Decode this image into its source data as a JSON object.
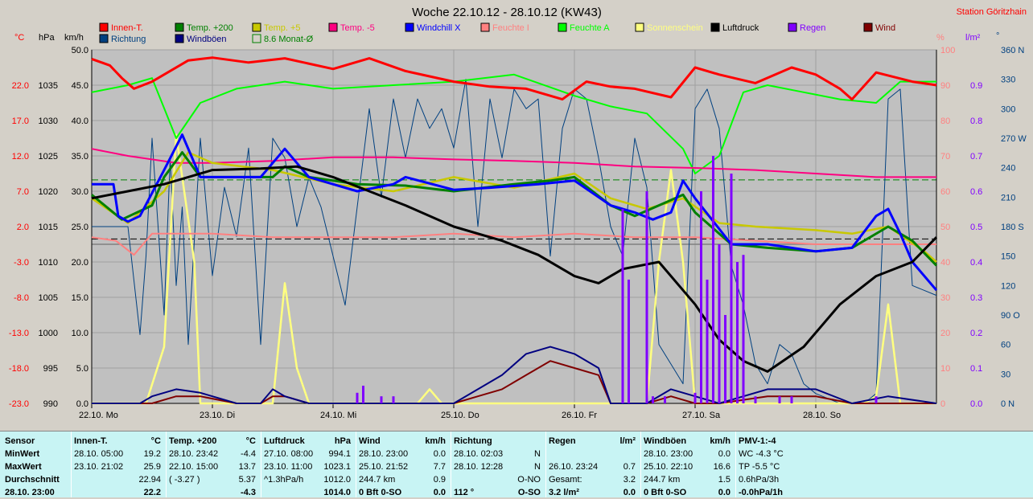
{
  "title": "Woche 22.10.12 - 28.10.12 (KW43)",
  "station": "Station Göritzhain",
  "axis_units": {
    "temp": "°C",
    "press": "hPa",
    "wind": "km/h",
    "humid": "%",
    "rain": "l/m²",
    "dir": "°"
  },
  "legend": [
    {
      "label": "Innen-T.",
      "color": "#ff0000"
    },
    {
      "label": "Temp. +200",
      "color": "#008000"
    },
    {
      "label": "Temp. +5",
      "color": "#c8c800"
    },
    {
      "label": "Temp. -5",
      "color": "#ff0080"
    },
    {
      "label": "Windchill X",
      "color": "#0000ff"
    },
    {
      "label": "Feuchte I",
      "color": "#ff8080"
    },
    {
      "label": "Feuchte A",
      "color": "#00ff00"
    },
    {
      "label": "Sonnenschein",
      "color": "#ffff80"
    },
    {
      "label": "Luftdruck",
      "color": "#000000"
    },
    {
      "label": "Regen",
      "color": "#8000ff"
    },
    {
      "label": "Wind",
      "color": "#800000"
    },
    {
      "label": "Richtung",
      "color": "#004080"
    },
    {
      "label": "Windböen",
      "color": "#000080"
    },
    {
      "label": "8.6 Monat-Ø",
      "color": "#008000"
    }
  ],
  "chart_data": {
    "type": "line",
    "title": "Woche 22.10.12 - 28.10.12 (KW43)",
    "x_ticks": [
      "22.10. Mo",
      "23.10. Di",
      "24.10. Mi",
      "25.10. Do",
      "26.10. Fr",
      "27.10. Sa",
      "28.10. So"
    ],
    "x_range_days": [
      0,
      7
    ],
    "axes": {
      "temp": {
        "ticks": [
          "-23.0",
          "-18.0",
          "-13.0",
          "-8.0",
          "-3.0",
          "2.0",
          "7.0",
          "12.0",
          "17.0",
          "22.0"
        ],
        "range": [
          -23,
          27
        ]
      },
      "press": {
        "ticks": [
          "990",
          "995",
          "1000",
          "1005",
          "1010",
          "1015",
          "1020",
          "1025",
          "1030",
          "1035"
        ],
        "range": [
          990,
          1040
        ]
      },
      "wind": {
        "ticks": [
          "0.0",
          "5.0",
          "10.0",
          "15.0",
          "20.0",
          "25.0",
          "30.0",
          "35.0",
          "40.0",
          "45.0",
          "50.0"
        ],
        "range": [
          0,
          50
        ]
      },
      "humid": {
        "ticks": [
          "0",
          "10",
          "20",
          "30",
          "40",
          "50",
          "60",
          "70",
          "80",
          "90",
          "100"
        ],
        "range": [
          0,
          100
        ]
      },
      "rain": {
        "ticks": [
          "0.0",
          "0.1",
          "0.2",
          "0.3",
          "0.4",
          "0.5",
          "0.6",
          "0.7",
          "0.8",
          "0.9"
        ],
        "range": [
          0,
          1.0
        ]
      },
      "dir": {
        "ticks": [
          "0 N",
          "30",
          "60",
          "90 O",
          "120",
          "150",
          "180 S",
          "210",
          "240",
          "270 W",
          "300",
          "330",
          "360 N"
        ],
        "range": [
          0,
          360
        ]
      }
    },
    "reference_lines": [
      {
        "name": "8.6 Monat-Ø",
        "axis": "temp",
        "value": 8.6,
        "color": "#008000",
        "dash": true
      },
      {
        "axis": "press",
        "value": 1013.25,
        "color": "#000000",
        "dash": true
      }
    ],
    "series": [
      {
        "name": "Innen-T.",
        "axis": "temp",
        "color": "#ff0000",
        "x": [
          0,
          0.15,
          0.25,
          0.35,
          0.5,
          0.8,
          1.0,
          1.3,
          1.6,
          2.0,
          2.3,
          2.6,
          3.0,
          3.3,
          3.6,
          3.9,
          4.1,
          4.3,
          4.5,
          4.8,
          5.0,
          5.2,
          5.5,
          5.8,
          6.0,
          6.2,
          6.3,
          6.5,
          6.8,
          7.0
        ],
        "y": [
          25.7,
          24.8,
          23.0,
          21.5,
          22.5,
          25.5,
          25.9,
          25.2,
          25.8,
          24.3,
          25.8,
          24.0,
          22.5,
          21.8,
          21.5,
          20.0,
          22.5,
          21.8,
          21.5,
          20.3,
          24.5,
          23.5,
          22.3,
          24.5,
          23.5,
          21.5,
          20.0,
          23.8,
          22.5,
          22.0
        ]
      },
      {
        "name": "Feuchte A",
        "axis": "humid",
        "color": "#00ff00",
        "x": [
          0,
          0.3,
          0.5,
          0.7,
          0.9,
          1.2,
          1.6,
          2.0,
          2.5,
          3.0,
          3.5,
          4.0,
          4.3,
          4.6,
          4.9,
          5.0,
          5.2,
          5.4,
          5.6,
          5.9,
          6.2,
          6.5,
          6.7,
          7.0
        ],
        "y": [
          88,
          90,
          92,
          75,
          85,
          89,
          91,
          89,
          90,
          91,
          93,
          87,
          84,
          82,
          72,
          65,
          70,
          88,
          90,
          88,
          86,
          85,
          91,
          91
        ]
      },
      {
        "name": "Temp. -5",
        "axis": "temp",
        "color": "#ff0080",
        "x": [
          0,
          0.3,
          0.7,
          1.0,
          1.5,
          2.0,
          2.5,
          3.0,
          3.5,
          4.0,
          4.5,
          5.0,
          5.5,
          6.0,
          6.5,
          7.0
        ],
        "y": [
          13.0,
          12.0,
          11.0,
          11.0,
          11.3,
          11.8,
          11.8,
          11.5,
          11.3,
          11.0,
          10.5,
          10.3,
          10.0,
          9.5,
          9.0,
          9.0
        ]
      },
      {
        "name": "Feuchte I",
        "axis": "humid",
        "color": "#ff8080",
        "x": [
          0,
          0.2,
          0.35,
          0.5,
          1.0,
          1.5,
          2.0,
          2.5,
          3.0,
          3.5,
          4.0,
          4.5,
          5.0,
          5.5,
          6.0,
          6.5,
          7.0
        ],
        "y": [
          47,
          46,
          42,
          48,
          48,
          47,
          47,
          47,
          48,
          47,
          48,
          47,
          47,
          46,
          45,
          45,
          45
        ]
      },
      {
        "name": "Temp. +5",
        "axis": "temp",
        "color": "#c8c800",
        "x": [
          0,
          0.3,
          0.6,
          0.8,
          1.0,
          1.5,
          2.0,
          2.5,
          3.0,
          3.5,
          4.0,
          4.3,
          4.6,
          4.9,
          5.2,
          5.5,
          6.0,
          6.3,
          6.6,
          6.9,
          7.0
        ],
        "y": [
          6.0,
          2.5,
          7.0,
          12.5,
          11.0,
          10.0,
          8.0,
          7.0,
          9.0,
          7.5,
          9.5,
          6.0,
          4.5,
          6.0,
          2.5,
          2.0,
          1.5,
          1.0,
          2.0,
          -1.5,
          -3.0
        ]
      },
      {
        "name": "Temp. +200",
        "axis": "temp",
        "color": "#008000",
        "x": [
          0,
          0.25,
          0.5,
          0.6,
          0.75,
          0.9,
          1.2,
          1.5,
          1.6,
          1.8,
          2.2,
          2.6,
          3.0,
          3.5,
          3.8,
          4.0,
          4.3,
          4.5,
          4.7,
          4.9,
          5.0,
          5.3,
          5.6,
          6.0,
          6.3,
          6.6,
          6.8,
          7.0
        ],
        "y": [
          6.5,
          3.0,
          5.0,
          9.0,
          12.5,
          9.0,
          9.0,
          9.0,
          10.5,
          9.0,
          8.0,
          7.8,
          7.0,
          8.0,
          8.5,
          9.0,
          5.0,
          3.5,
          5.0,
          6.5,
          4.0,
          -0.5,
          -1.0,
          -1.5,
          -1.0,
          2.0,
          0.0,
          -3.5
        ]
      },
      {
        "name": "Windchill X",
        "axis": "temp",
        "color": "#0000ff",
        "x": [
          0,
          0.18,
          0.22,
          0.3,
          0.4,
          0.6,
          0.75,
          0.9,
          1.2,
          1.4,
          1.5,
          1.6,
          1.7,
          1.8,
          2.2,
          2.5,
          2.6,
          3.0,
          3.3,
          3.7,
          4.0,
          4.3,
          4.5,
          4.65,
          4.8,
          4.9,
          5.0,
          5.3,
          5.6,
          6.0,
          6.3,
          6.5,
          6.6,
          6.7,
          6.8,
          7.0
        ],
        "y": [
          8.0,
          8.0,
          3.5,
          2.7,
          3.5,
          10.0,
          15.0,
          9.0,
          9.0,
          9.0,
          11.0,
          13.0,
          11.0,
          9.0,
          7.0,
          8.0,
          9.0,
          7.2,
          7.5,
          8.0,
          8.5,
          5.0,
          4.0,
          3.0,
          4.0,
          8.5,
          6.0,
          -0.5,
          -0.5,
          -1.5,
          -1.0,
          3.5,
          4.5,
          1.0,
          -3.0,
          -7.0
        ]
      },
      {
        "name": "Luftdruck",
        "axis": "press",
        "color": "#000000",
        "x": [
          0,
          0.3,
          0.6,
          0.8,
          1.0,
          1.4,
          1.7,
          2.0,
          2.3,
          2.6,
          3.0,
          3.4,
          3.7,
          4.0,
          4.2,
          4.4,
          4.7,
          5.0,
          5.2,
          5.4,
          5.6,
          5.9,
          6.2,
          6.5,
          6.8,
          7.0
        ],
        "y": [
          1019,
          1020,
          1021,
          1022,
          1023,
          1023.2,
          1023.5,
          1022,
          1020,
          1018,
          1015,
          1013,
          1011,
          1008,
          1007,
          1009,
          1010,
          1004,
          999,
          996,
          994.5,
          998,
          1004,
          1008,
          1010,
          1013.5
        ]
      },
      {
        "name": "Sonnenschein",
        "axis": "wind",
        "color": "#ffff80",
        "x": [
          0,
          0.35,
          0.45,
          0.6,
          0.7,
          0.85,
          0.9,
          1.4,
          1.5,
          1.6,
          1.7,
          1.8,
          2.6,
          2.7,
          2.8,
          2.9,
          4.4,
          4.5,
          4.6,
          4.7,
          4.8,
          4.9,
          5.0,
          5.1,
          6.3,
          6.4,
          6.5,
          6.6,
          6.7,
          7.0
        ],
        "y": [
          0,
          0,
          0,
          8,
          38,
          20,
          0,
          0,
          0,
          17,
          5,
          0,
          0,
          0,
          2,
          0,
          0,
          0,
          0,
          20,
          33,
          20,
          0,
          0,
          0,
          0,
          1,
          14,
          0,
          0
        ]
      },
      {
        "name": "Wind",
        "axis": "wind",
        "color": "#800000",
        "x": [
          0,
          0.5,
          0.7,
          0.9,
          1.2,
          1.4,
          1.5,
          1.6,
          1.8,
          2.0,
          3.0,
          3.2,
          3.4,
          3.6,
          3.8,
          4.0,
          4.2,
          4.3,
          4.6,
          4.8,
          5.0,
          5.2,
          5.6,
          5.8,
          6.0,
          6.3,
          6.6,
          7.0
        ],
        "y": [
          0,
          0,
          1,
          1,
          0,
          0,
          1,
          1,
          0,
          0,
          0,
          1,
          2,
          4,
          6,
          5,
          4,
          0,
          0,
          1,
          0,
          0,
          1,
          1,
          1,
          0,
          0,
          0
        ]
      },
      {
        "name": "Windböen",
        "axis": "wind",
        "color": "#000080",
        "x": [
          0,
          0.4,
          0.5,
          0.7,
          0.9,
          1.2,
          1.4,
          1.5,
          1.6,
          1.8,
          2.0,
          3.0,
          3.2,
          3.4,
          3.6,
          3.8,
          4.0,
          4.2,
          4.3,
          4.6,
          4.8,
          5.0,
          5.2,
          5.6,
          5.8,
          6.0,
          6.3,
          6.6,
          7.0
        ],
        "y": [
          0,
          0,
          1,
          2,
          1.5,
          0,
          0,
          2,
          1,
          0,
          0,
          0,
          2,
          4,
          7,
          8,
          7,
          5,
          0,
          0,
          2,
          1,
          0,
          2,
          2,
          2,
          0,
          1,
          0
        ]
      },
      {
        "name": "Richtung",
        "axis": "dir",
        "color": "#004080",
        "x": [
          0,
          0.3,
          0.4,
          0.45,
          0.5,
          0.55,
          0.6,
          0.65,
          0.7,
          0.75,
          0.8,
          0.9,
          1.0,
          1.1,
          1.2,
          1.3,
          1.4,
          1.5,
          1.6,
          1.7,
          1.8,
          1.9,
          2.0,
          2.1,
          2.2,
          2.3,
          2.4,
          2.5,
          2.6,
          2.7,
          2.8,
          2.9,
          3.0,
          3.1,
          3.2,
          3.3,
          3.4,
          3.5,
          3.6,
          3.7,
          3.8,
          3.9,
          4.0,
          4.1,
          4.2,
          4.3,
          4.4,
          4.5,
          4.6,
          4.7,
          4.8,
          4.9,
          5.0,
          5.1,
          5.2,
          5.3,
          5.4,
          5.5,
          5.6,
          5.7,
          5.8,
          5.9,
          6.0,
          6.2,
          6.4,
          6.5,
          6.6,
          6.7,
          6.8,
          7.0
        ],
        "y": [
          180,
          180,
          70,
          150,
          270,
          180,
          90,
          250,
          120,
          200,
          60,
          270,
          130,
          220,
          170,
          260,
          60,
          270,
          250,
          180,
          230,
          200,
          150,
          100,
          200,
          300,
          210,
          310,
          250,
          310,
          280,
          300,
          260,
          330,
          180,
          310,
          250,
          320,
          300,
          310,
          150,
          280,
          320,
          310,
          250,
          180,
          150,
          270,
          220,
          60,
          40,
          20,
          300,
          320,
          280,
          140,
          100,
          40,
          20,
          60,
          50,
          20,
          10,
          0,
          0,
          10,
          310,
          320,
          120,
          110
        ]
      }
    ],
    "rain_bars": {
      "x": [
        2.2,
        2.25,
        2.4,
        2.5,
        4.4,
        4.45,
        4.6,
        4.65,
        4.75,
        5.0,
        5.05,
        5.1,
        5.15,
        5.2,
        5.25,
        5.3,
        5.35,
        5.4,
        5.5,
        5.7,
        5.8,
        6.5
      ],
      "y": [
        0.03,
        0.05,
        0.02,
        0.02,
        0.55,
        0.35,
        0.6,
        0.02,
        0.02,
        0.03,
        0.6,
        0.35,
        0.7,
        0.45,
        0.25,
        0.65,
        0.4,
        0.42,
        0.02,
        0.02,
        0.02,
        0.02
      ]
    }
  },
  "stats": {
    "columns": [
      {
        "head": "Sensor",
        "unit": "",
        "rows": [
          "MinWert",
          "MaxWert",
          "Durchschnitt",
          "28.10. 23:00"
        ]
      },
      {
        "head": "Innen-T.",
        "unit": "°C",
        "rows": [
          [
            "28.10.  05:00",
            "19.2"
          ],
          [
            "23.10.  21:02",
            "25.9"
          ],
          [
            "",
            "22.94"
          ],
          [
            "",
            "22.2"
          ]
        ]
      },
      {
        "head": "Temp. +200",
        "unit": "°C",
        "rows": [
          [
            "28.10.  23:42",
            "-4.4"
          ],
          [
            "22.10.  15:00",
            "13.7"
          ],
          [
            "( -3.27 )",
            "5.37"
          ],
          [
            "",
            "-4.3"
          ]
        ]
      },
      {
        "head": "Luftdruck",
        "unit": "hPa",
        "rows": [
          [
            "27.10.  08:00",
            "994.1"
          ],
          [
            "23.10.  11:00",
            "1023.1"
          ],
          [
            "^1.3hPa/h",
            "1012.0"
          ],
          [
            "",
            "1014.0"
          ]
        ]
      },
      {
        "head": "Wind",
        "unit": "km/h",
        "rows": [
          [
            "28.10.  23:00",
            "0.0"
          ],
          [
            "25.10.  21:52",
            "7.7"
          ],
          [
            "244.7 km",
            "0.9"
          ],
          [
            "0 Bft 0-SO",
            "0.0"
          ]
        ]
      },
      {
        "head": "Richtung",
        "unit": "",
        "rows": [
          [
            "28.10.  02:03",
            "N"
          ],
          [
            "28.10.  12:28",
            "N"
          ],
          [
            "",
            "O-NO"
          ],
          [
            "112 °",
            "O-SO"
          ]
        ]
      },
      {
        "head": "Regen",
        "unit": "l/m²",
        "rows": [
          [
            "",
            ""
          ],
          [
            "26.10.  23:24",
            "0.7"
          ],
          [
            "Gesamt:",
            "3.2"
          ],
          [
            "3.2 l/m²",
            "0.0"
          ]
        ]
      },
      {
        "head": "Windböen",
        "unit": "km/h",
        "rows": [
          [
            "28.10.  23:00",
            "0.0"
          ],
          [
            "25.10.  22:10",
            "16.6"
          ],
          [
            "244.7 km",
            "1.5"
          ],
          [
            "0 Bft 0-SO",
            "0.0"
          ]
        ]
      },
      {
        "head": "PMV-1:-4",
        "unit": "",
        "rows": [
          [
            "WC -4.3 °C",
            ""
          ],
          [
            "TP -5.5 °C",
            ""
          ],
          [
            "0.6hPa/3h",
            ""
          ],
          [
            "-0.0hPa/1h",
            ""
          ]
        ]
      }
    ]
  }
}
